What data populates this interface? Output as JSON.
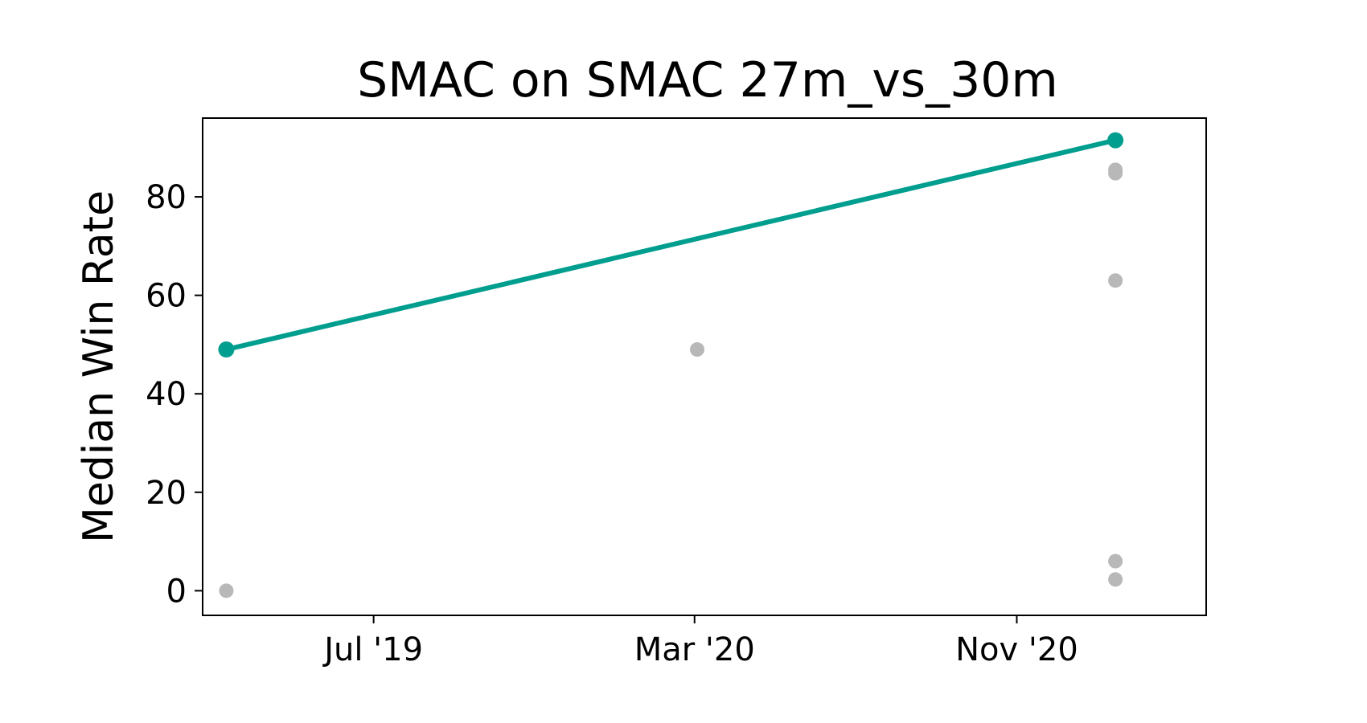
{
  "chart_data": {
    "type": "scatter",
    "title": "SMAC on SMAC 27m_vs_30m",
    "xlabel": "",
    "ylabel": "Median Win Rate",
    "x_ticks": [
      "2019-07-01",
      "2020-03-01",
      "2020-11-01"
    ],
    "x_tick_labels": [
      "Jul '19",
      "Mar '20",
      "Nov '20"
    ],
    "y_ticks": [
      0,
      20,
      40,
      60,
      80
    ],
    "y_tick_labels": [
      "0",
      "20",
      "40",
      "60",
      "80"
    ],
    "xlim": [
      "2019-02-21",
      "2021-03-25"
    ],
    "ylim": [
      -5,
      96
    ],
    "grid": false,
    "series": [
      {
        "role": "state-of-the-art",
        "color": "#009e8e",
        "points": [
          {
            "x": "2019-03-11",
            "y": 49
          },
          {
            "x": "2021-01-15",
            "y": 91.5
          }
        ]
      },
      {
        "role": "other-results",
        "color": "#b8b8b8",
        "points": [
          {
            "x": "2019-03-11",
            "y": 0
          },
          {
            "x": "2020-03-03",
            "y": 49
          },
          {
            "x": "2021-01-15",
            "y": 85.5
          },
          {
            "x": "2021-01-15",
            "y": 84.8
          },
          {
            "x": "2021-01-15",
            "y": 63
          },
          {
            "x": "2021-01-15",
            "y": 6
          },
          {
            "x": "2021-01-15",
            "y": 2.3
          }
        ]
      }
    ]
  }
}
